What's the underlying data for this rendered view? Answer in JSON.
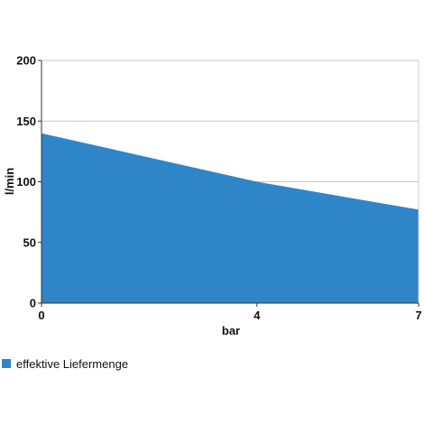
{
  "chart_data": {
    "type": "area",
    "title": "",
    "xlabel": "bar",
    "ylabel": "l/min",
    "x": [
      0,
      4,
      7
    ],
    "xlim": [
      0,
      7
    ],
    "ylim": [
      0,
      200
    ],
    "x_ticks": [
      0,
      4,
      7
    ],
    "y_ticks": [
      0,
      50,
      100,
      150,
      200
    ],
    "grid": "horizontal",
    "legend_position": "bottom-left",
    "series": [
      {
        "name": "effektive Liefermenge",
        "values": [
          140,
          100,
          77
        ],
        "color": "#2e86c8"
      }
    ]
  }
}
